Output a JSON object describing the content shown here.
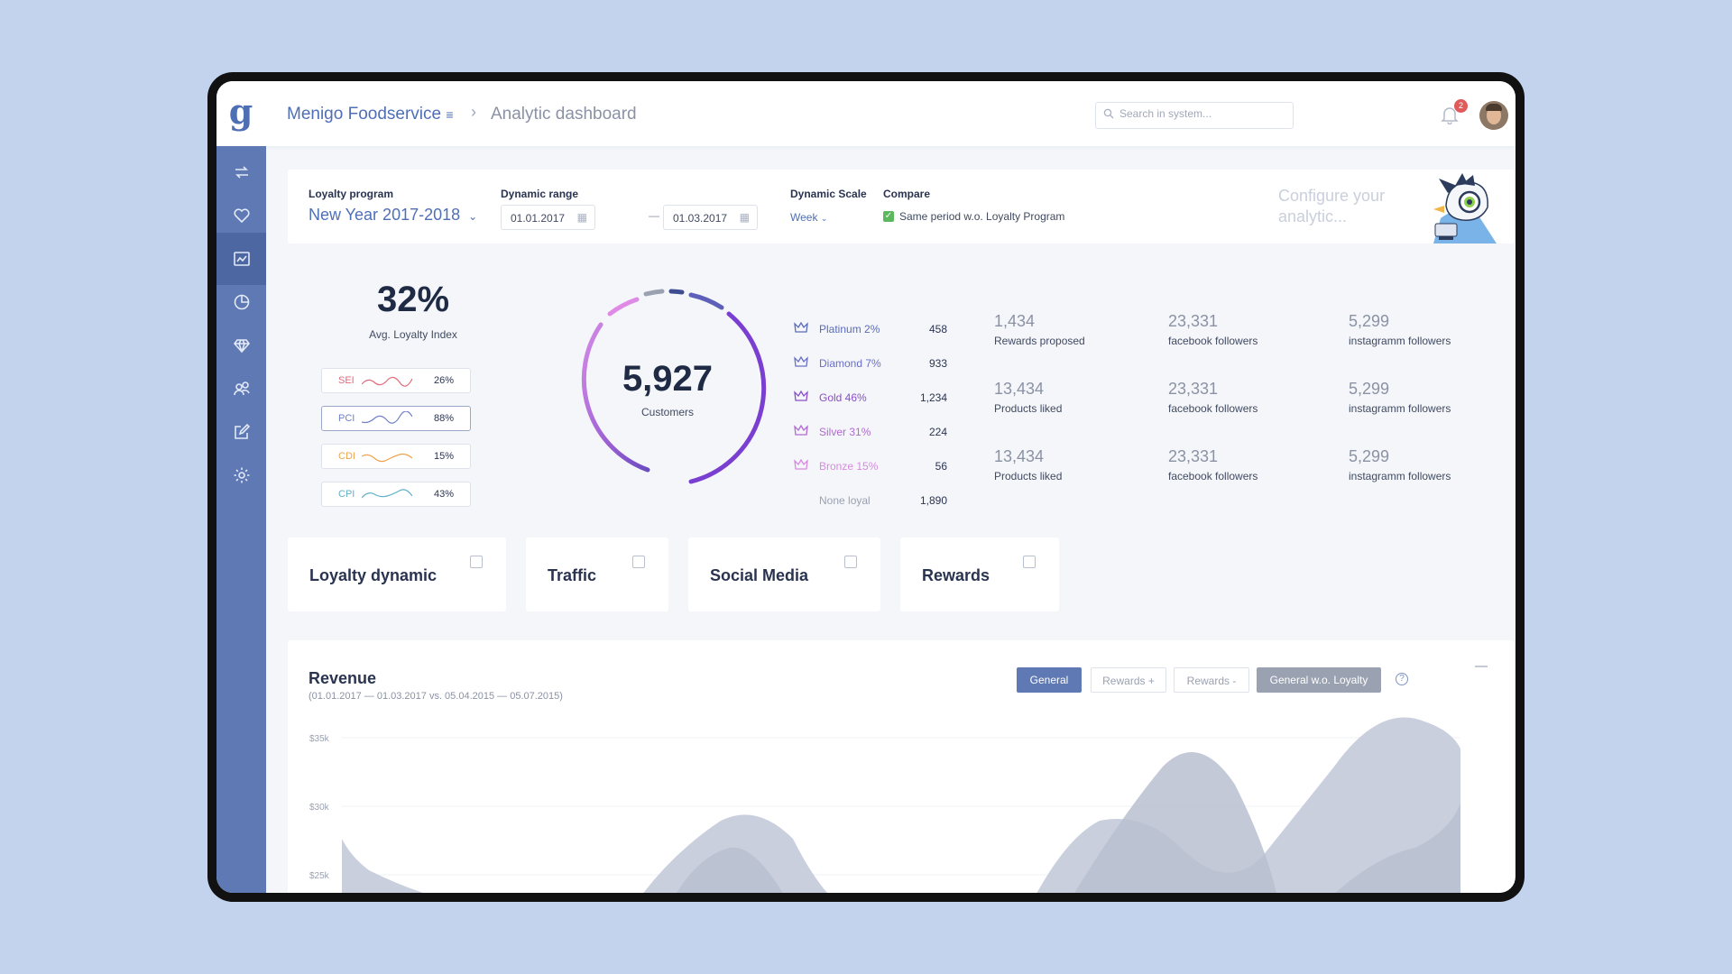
{
  "header": {
    "logo_text": "g",
    "company": "Menigo Foodservice",
    "company_menu_icon": "≡",
    "breadcrumb_sep": "›",
    "page": "Analytic dashboard",
    "search_placeholder": "Search in system...",
    "notification_count": "2"
  },
  "sidebar": {
    "items": [
      {
        "icon": "switch-icon"
      },
      {
        "icon": "heart-icon"
      },
      {
        "icon": "analytics-icon",
        "active": true
      },
      {
        "icon": "pie-chart-icon"
      },
      {
        "icon": "diamond-icon"
      },
      {
        "icon": "users-icon"
      },
      {
        "icon": "edit-icon"
      },
      {
        "icon": "gear-icon"
      }
    ]
  },
  "filters": {
    "program_label": "Loyalty program",
    "program_value": "New Year 2017-2018",
    "range_label": "Dynamic range",
    "date_from": "01.01.2017",
    "date_to": "01.03.2017",
    "date_dash": "—",
    "scale_label": "Dynamic Scale",
    "scale_value": "Week",
    "compare_label": "Compare",
    "compare_text": "Same period w.o. Loyalty Program",
    "compare_checked": true,
    "configure_text": "Configure your analytic..."
  },
  "loyalty_index": {
    "value": "32%",
    "label": "Avg. Loyalty Index",
    "indexes": [
      {
        "name": "SEI",
        "value": "26%",
        "color": "#e06a7a"
      },
      {
        "name": "PCI",
        "value": "88%",
        "color": "#6f7fc9"
      },
      {
        "name": "CDI",
        "value": "15%",
        "color": "#f0a24a"
      },
      {
        "name": "CPI",
        "value": "43%",
        "color": "#5fb0c8"
      }
    ]
  },
  "customers": {
    "value": "5,927",
    "label": "Customers"
  },
  "tiers": [
    {
      "name": "Platinum 2%",
      "count": "458",
      "color": "#5a6cb8"
    },
    {
      "name": "Diamond 7%",
      "count": "933",
      "color": "#6a6fc4"
    },
    {
      "name": "Gold 46%",
      "count": "1,234",
      "color": "#8a4fc8"
    },
    {
      "name": "Silver 31%",
      "count": "224",
      "color": "#b06ad0"
    },
    {
      "name": "Bronze 15%",
      "count": "56",
      "color": "#d78ae0"
    },
    {
      "name": "None loyal",
      "count": "1,890",
      "color": "#9aa1b1"
    }
  ],
  "stats": [
    {
      "value": "1,434",
      "label": "Rewards proposed"
    },
    {
      "value": "23,331",
      "label": "facebook followers"
    },
    {
      "value": "5,299",
      "label": "instagramm followers"
    },
    {
      "value": "13,434",
      "label": "Products liked"
    },
    {
      "value": "23,331",
      "label": "facebook followers"
    },
    {
      "value": "5,299",
      "label": "instagramm followers"
    },
    {
      "value": "13,434",
      "label": "Products liked"
    },
    {
      "value": "23,331",
      "label": "facebook followers"
    },
    {
      "value": "5,299",
      "label": "instagramm followers"
    }
  ],
  "tabs": [
    {
      "label": "Loyalty dynamic"
    },
    {
      "label": "Traffic"
    },
    {
      "label": "Social Media"
    },
    {
      "label": "Rewards"
    }
  ],
  "revenue": {
    "title": "Revenue",
    "subtitle": "(01.01.2017 — 01.03.2017 vs. 05.04.2015 — 05.07.2015)",
    "buttons": [
      "General",
      "Rewards +",
      "Rewards -",
      "General w.o. Loyalty"
    ],
    "help": "?",
    "y_ticks": [
      "$35k",
      "$30k",
      "$25k"
    ]
  },
  "colors": {
    "accent": "#5e79b4",
    "sidebar": "#5e79b4",
    "page_bg": "#c3d3ee"
  }
}
